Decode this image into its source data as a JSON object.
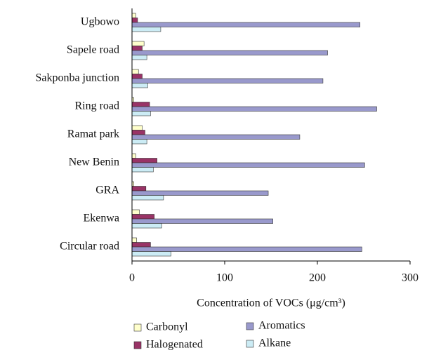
{
  "chart_data": {
    "type": "bar",
    "orientation": "horizontal",
    "x_label": "Concentration of VOCs (μg/cm³)",
    "categories": [
      "Ugbowo",
      "Sapele road",
      "Sakponba junction",
      "Ring road",
      "Ramat park",
      "New Benin",
      "GRA",
      "Ekenwa",
      "Circular road"
    ],
    "series": [
      {
        "name": "Carbonyl",
        "color": "#ffffcc",
        "values": [
          4,
          13,
          7,
          2,
          11,
          4,
          2,
          8,
          5
        ]
      },
      {
        "name": "Halogenated",
        "color": "#993366",
        "values": [
          6,
          11,
          11,
          19,
          14,
          27,
          15,
          24,
          20
        ]
      },
      {
        "name": "Aromatics",
        "color": "#9999cc",
        "values": [
          246,
          211,
          206,
          264,
          181,
          251,
          147,
          152,
          248
        ]
      },
      {
        "name": "Alkane",
        "color": "#ccecf5",
        "values": [
          31,
          16,
          17,
          20,
          16,
          23,
          34,
          32,
          42
        ]
      }
    ],
    "xlim": [
      0,
      300
    ],
    "xticks": [
      0,
      100,
      200,
      300
    ],
    "grid": false
  }
}
